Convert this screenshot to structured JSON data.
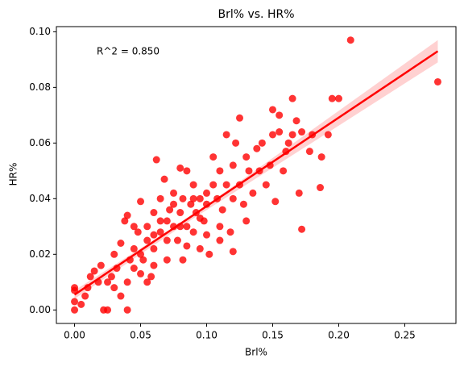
{
  "chart_data": {
    "type": "scatter",
    "title": "Brl% vs. HR%",
    "x_label": "Brl%",
    "y_label": "HR%",
    "annotation": "R^2 = 0.850",
    "color": "#ff0000",
    "band_color": "#ffb3b3",
    "xlim": [
      -0.01375,
      0.28875
    ],
    "ylim": [
      -0.00485,
      0.10185
    ],
    "xticks": [
      {
        "value": 0,
        "label": "0.00"
      },
      {
        "value": 0.05,
        "label": "0.05"
      },
      {
        "value": 0.1,
        "label": "0.10"
      },
      {
        "value": 0.15,
        "label": "0.15"
      },
      {
        "value": 0.2,
        "label": "0.20"
      },
      {
        "value": 0.25,
        "label": "0.25"
      }
    ],
    "yticks": [
      {
        "value": 0,
        "label": "0.00"
      },
      {
        "value": 0.02,
        "label": "0.02"
      },
      {
        "value": 0.04,
        "label": "0.04"
      },
      {
        "value": 0.06,
        "label": "0.06"
      },
      {
        "value": 0.08,
        "label": "0.08"
      },
      {
        "value": 0.1,
        "label": "0.10"
      }
    ],
    "x": [
      0,
      0,
      0,
      0,
      0.005,
      0.008,
      0.01,
      0.012,
      0.015,
      0.018,
      0.02,
      0.022,
      0.025,
      0.025,
      0.028,
      0.03,
      0.03,
      0.032,
      0.035,
      0.035,
      0.038,
      0.04,
      0.04,
      0.04,
      0.042,
      0.045,
      0.045,
      0.048,
      0.05,
      0.05,
      0.052,
      0.055,
      0.055,
      0.058,
      0.06,
      0.06,
      0.062,
      0.065,
      0.065,
      0.068,
      0.07,
      0.07,
      0.072,
      0.075,
      0.075,
      0.078,
      0.08,
      0.08,
      0.082,
      0.082,
      0.085,
      0.085,
      0.088,
      0.09,
      0.09,
      0.092,
      0.095,
      0.095,
      0.098,
      0.1,
      0.1,
      0.102,
      0.105,
      0.105,
      0.108,
      0.11,
      0.11,
      0.112,
      0.115,
      0.115,
      0.118,
      0.12,
      0.12,
      0.122,
      0.125,
      0.125,
      0.128,
      0.13,
      0.13,
      0.132,
      0.135,
      0.138,
      0.14,
      0.142,
      0.145,
      0.148,
      0.15,
      0.15,
      0.152,
      0.155,
      0.155,
      0.158,
      0.16,
      0.162,
      0.165,
      0.165,
      0.168,
      0.17,
      0.172,
      0.172,
      0.178,
      0.18,
      0.186,
      0.187,
      0.192,
      0.195,
      0.2,
      0.209,
      0.275,
      0.06,
      0.07,
      0.045,
      0.055,
      0.085,
      0.1,
      0.065,
      0.075,
      0.09,
      0.08,
      0.095,
      0.11,
      0.12,
      0.06,
      0.05
    ],
    "y": [
      0,
      0.003,
      0.007,
      0.008,
      0.002,
      0.005,
      0.008,
      0.012,
      0.014,
      0.01,
      0.016,
      0,
      0,
      0.01,
      0.012,
      0.008,
      0.02,
      0.015,
      0.005,
      0.024,
      0.032,
      0.034,
      0.01,
      0,
      0.018,
      0.022,
      0.015,
      0.028,
      0.02,
      0.039,
      0.018,
      0.025,
      0.03,
      0.012,
      0.035,
      0.022,
      0.054,
      0.028,
      0.04,
      0.047,
      0.032,
      0.018,
      0.036,
      0.03,
      0.042,
      0.025,
      0.051,
      0.035,
      0.04,
      0.018,
      0.05,
      0.03,
      0.038,
      0.028,
      0.045,
      0.035,
      0.04,
      0.022,
      0.032,
      0.042,
      0.038,
      0.02,
      0.055,
      0.045,
      0.04,
      0.03,
      0.05,
      0.036,
      0.063,
      0.045,
      0.028,
      0.04,
      0.052,
      0.06,
      0.069,
      0.045,
      0.038,
      0.055,
      0.032,
      0.05,
      0.042,
      0.058,
      0.05,
      0.06,
      0.045,
      0.052,
      0.072,
      0.063,
      0.039,
      0.064,
      0.07,
      0.05,
      0.057,
      0.06,
      0.076,
      0.063,
      0.068,
      0.042,
      0.029,
      0.064,
      0.057,
      0.063,
      0.044,
      0.055,
      0.063,
      0.076,
      0.076,
      0.097,
      0.082,
      0.016,
      0.025,
      0.03,
      0.01,
      0.023,
      0.027,
      0.032,
      0.038,
      0.04,
      0.03,
      0.033,
      0.025,
      0.021,
      0.027,
      0.013
    ],
    "fit_line": {
      "x": [
        0,
        0.275
      ],
      "y": [
        0.0055,
        0.093
      ]
    },
    "band": {
      "x": [
        0,
        0.09,
        0.275
      ],
      "lower": [
        0.004,
        0.0329,
        0.089
      ],
      "upper": [
        0.007,
        0.0343,
        0.097
      ]
    }
  }
}
